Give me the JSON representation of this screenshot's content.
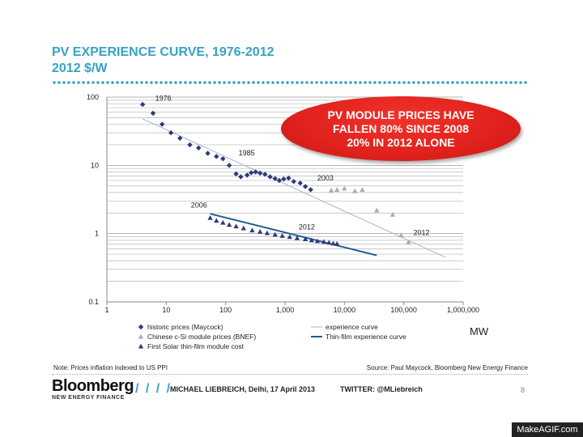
{
  "header": {
    "title_line1": "PV EXPERIENCE CURVE, 1976-2012",
    "title_line2": "2012 $/W"
  },
  "callout": {
    "line1": "PV MODULE PRICES HAVE",
    "line2": "FALLEN 80% SINCE 2008",
    "line3": "20% IN 2012 ALONE"
  },
  "chart_data": {
    "type": "scatter",
    "x_scale": "log",
    "y_scale": "log",
    "xlim": [
      1,
      1000000
    ],
    "ylim": [
      0.1,
      100
    ],
    "xlabel": "MW",
    "x_ticks": [
      1,
      10,
      100,
      1000,
      10000,
      100000,
      1000000
    ],
    "x_tick_labels": [
      "1",
      "10",
      "100",
      "1,000",
      "10,000",
      "100,000",
      "1,000,000"
    ],
    "y_ticks": [
      0.1,
      1,
      10,
      100
    ],
    "y_tick_labels": [
      "0.1",
      "1",
      "10",
      "100"
    ],
    "grid": "horizontal",
    "legend_position": "bottom",
    "series": [
      {
        "name": "historic prices (Maycock)",
        "marker": "diamond",
        "color": "#2e3a7a",
        "points": [
          [
            4,
            78
          ],
          [
            6,
            58
          ],
          [
            8.5,
            40
          ],
          [
            12,
            30
          ],
          [
            17,
            25
          ],
          [
            25,
            20
          ],
          [
            35,
            18
          ],
          [
            50,
            15
          ],
          [
            70,
            13.5
          ],
          [
            90,
            12.5
          ],
          [
            115,
            10
          ],
          [
            150,
            7.5
          ],
          [
            180,
            6.8
          ],
          [
            230,
            7.2
          ],
          [
            270,
            7.8
          ],
          [
            320,
            8.0
          ],
          [
            380,
            7.7
          ],
          [
            460,
            7.4
          ],
          [
            560,
            6.8
          ],
          [
            680,
            6.4
          ],
          [
            800,
            6.0
          ],
          [
            950,
            6.3
          ],
          [
            1150,
            6.5
          ],
          [
            1400,
            5.8
          ],
          [
            1800,
            5.5
          ],
          [
            2200,
            4.9
          ],
          [
            2700,
            4.4
          ]
        ]
      },
      {
        "name": "Chinese c-Si module prices (BNEF)",
        "marker": "triangle",
        "color": "#a9a9b9",
        "points": [
          [
            6000,
            4.3
          ],
          [
            7500,
            4.4
          ],
          [
            10000,
            4.6
          ],
          [
            15000,
            4.2
          ],
          [
            20000,
            4.4
          ],
          [
            35000,
            2.2
          ],
          [
            65000,
            1.9
          ],
          [
            90000,
            0.95
          ],
          [
            120000,
            0.75
          ]
        ]
      },
      {
        "name": "First Solar thin-film module cost",
        "marker": "triangle",
        "color": "#2e3a7a",
        "points": [
          [
            55,
            1.7
          ],
          [
            70,
            1.55
          ],
          [
            90,
            1.45
          ],
          [
            115,
            1.35
          ],
          [
            150,
            1.28
          ],
          [
            200,
            1.2
          ],
          [
            280,
            1.12
          ],
          [
            380,
            1.07
          ],
          [
            500,
            1.02
          ],
          [
            680,
            0.97
          ],
          [
            900,
            0.93
          ],
          [
            1200,
            0.9
          ],
          [
            1600,
            0.86
          ],
          [
            2200,
            0.83
          ],
          [
            2800,
            0.8
          ],
          [
            3500,
            0.78
          ],
          [
            4500,
            0.76
          ],
          [
            5500,
            0.74
          ],
          [
            6500,
            0.72
          ],
          [
            7500,
            0.71
          ]
        ]
      }
    ],
    "lines": [
      {
        "name": "experience curve",
        "color": "#9fb6d6",
        "width": 1,
        "points": [
          [
            4,
            48
          ],
          [
            500000,
            0.45
          ]
        ]
      },
      {
        "name": "Thin-film experience curve",
        "color": "#1f5d8c",
        "width": 2,
        "points": [
          [
            55,
            1.95
          ],
          [
            35000,
            0.48
          ]
        ]
      }
    ],
    "annotations": [
      {
        "text": "1976",
        "x": 6.5,
        "y": 88
      },
      {
        "text": "1985",
        "x": 165,
        "y": 14
      },
      {
        "text": "2003",
        "x": 3500,
        "y": 6.0
      },
      {
        "text": "2006",
        "x": 26,
        "y": 2.4
      },
      {
        "text": "2012",
        "x": 1700,
        "y": 1.15
      },
      {
        "text": "2012",
        "x": 145000,
        "y": 0.95
      }
    ]
  },
  "footer": {
    "note": "Note: Prices inflation indexed to US PPI",
    "source": "Source: Paul Maycock, Bloomberg New Energy Finance",
    "brand_name": "Bloomberg",
    "brand_sub": "NEW ENERGY FINANCE",
    "brand_slashes": "/ / / /",
    "author": "MICHAEL LIEBREICH, Delhi, 17 April 2013",
    "twitter": "TWITTER: @MLiebreich",
    "page_number": "8"
  },
  "watermark": "MakeAGIF.com"
}
